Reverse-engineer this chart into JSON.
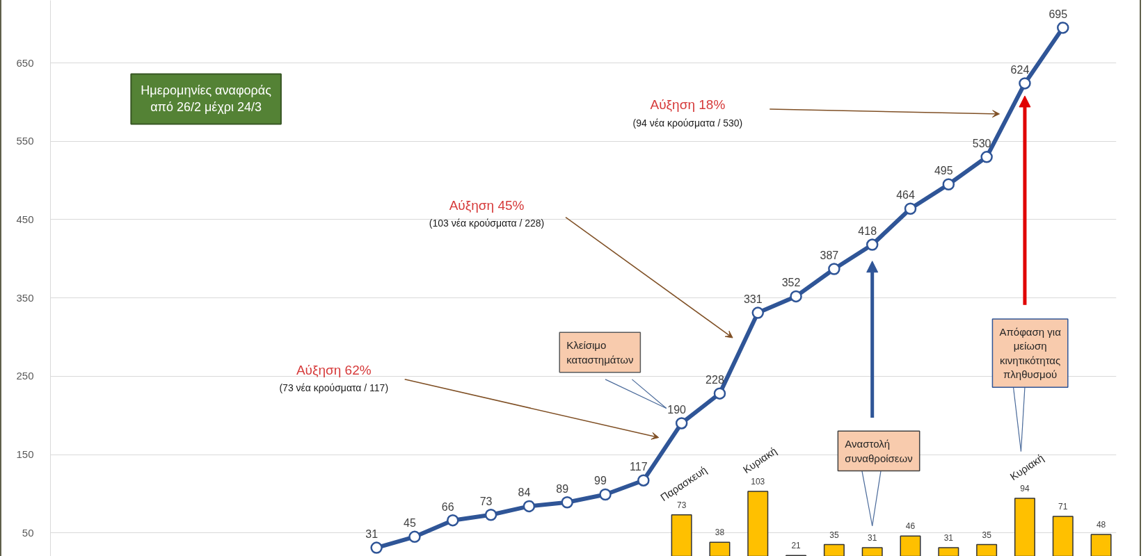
{
  "chart_data": {
    "type": "line",
    "categories": [
      null,
      null,
      null,
      null,
      null,
      null,
      null,
      null,
      null,
      null,
      null,
      null,
      null,
      null,
      null,
      null,
      null,
      null,
      null,
      null,
      null,
      null,
      null,
      null,
      null,
      null,
      null,
      null
    ],
    "series": [
      {
        "type": "bar",
        "color": "#ffc000",
        "values": [
          null,
          null,
          null,
          null,
          null,
          null,
          null,
          null,
          null,
          null,
          null,
          null,
          null,
          null,
          null,
          null,
          73,
          38,
          103,
          21,
          35,
          31,
          46,
          31,
          35,
          94,
          71,
          48
        ]
      },
      {
        "color": "#2f5597",
        "values": [
          null,
          null,
          null,
          null,
          null,
          null,
          null,
          null,
          31,
          45,
          66,
          73,
          84,
          89,
          99,
          117,
          190,
          228,
          331,
          352,
          387,
          418,
          464,
          495,
          530,
          624,
          695,
          null
        ]
      }
    ],
    "ylim": [
      20,
      730
    ],
    "yticks": [
      50,
      150,
      250,
      350,
      450,
      550,
      650
    ],
    "grid": "y",
    "tick_labels": "y",
    "marker": "circle",
    "line_style": "solid",
    "data_labels": true,
    "annotations": [
      "Ημερομηνίες αναφοράς από 26/2 μέχρι 24/3",
      "Αύξηση 62%",
      "(73 νέα κρούσματα / 117)",
      "Αύξηση 45%",
      "(103 νέα κρούσματα / 228)",
      "Αύξηση 18%",
      "(94 νέα κρούσματα / 530)",
      "Κλείσιμο καταστημάτων",
      "Αναστολή συναθροίσεων",
      "Απόφαση για μείωση κινητικότητας πληθυσμού",
      "Παρασκευή",
      "Κυριακή",
      "Κυριακή"
    ]
  }
}
